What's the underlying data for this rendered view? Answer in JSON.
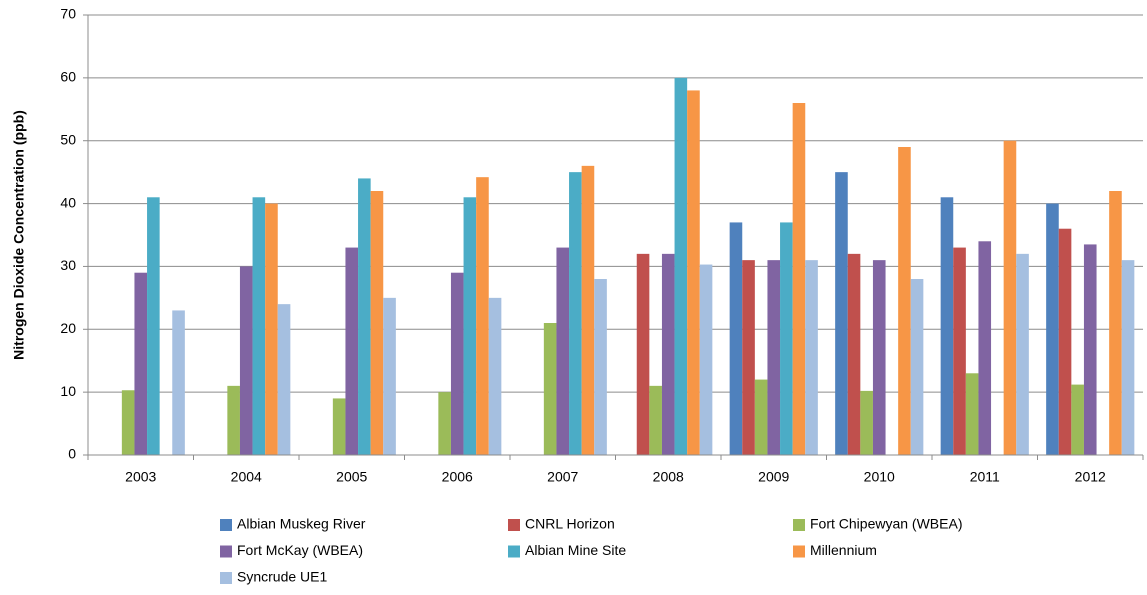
{
  "chart_data": {
    "type": "bar",
    "y_label": "Nitrogen Dioxide Concentration (ppb)",
    "categories": [
      "2003",
      "2004",
      "2005",
      "2006",
      "2007",
      "2008",
      "2009",
      "2010",
      "2011",
      "2012"
    ],
    "series": [
      {
        "name": "Albian Muskeg River",
        "color": "#4f81bd",
        "values": [
          null,
          null,
          null,
          null,
          null,
          null,
          37,
          45,
          41,
          40
        ]
      },
      {
        "name": "CNRL Horizon",
        "color": "#c0504d",
        "values": [
          null,
          null,
          null,
          null,
          null,
          32,
          31,
          32,
          33,
          36
        ]
      },
      {
        "name": "Fort Chipewyan (WBEA)",
        "color": "#9bbb59",
        "values": [
          10.3,
          11,
          9,
          10,
          21,
          11,
          12,
          10.2,
          13,
          11.2
        ]
      },
      {
        "name": "Fort McKay (WBEA)",
        "color": "#8064a2",
        "values": [
          29,
          30,
          33,
          29,
          33,
          32,
          31,
          31,
          34,
          33.5
        ]
      },
      {
        "name": "Albian Mine Site",
        "color": "#4bacc6",
        "values": [
          41,
          41,
          44,
          41,
          45,
          60,
          37,
          null,
          null,
          null
        ]
      },
      {
        "name": "Millennium",
        "color": "#f79646",
        "values": [
          null,
          40,
          42,
          44.2,
          46,
          58,
          56,
          49,
          50,
          42
        ]
      },
      {
        "name": "Syncrude UE1",
        "color": "#a5bfe0",
        "values": [
          23,
          24,
          25,
          25,
          28,
          30.3,
          31,
          28,
          32,
          31
        ]
      }
    ],
    "ylim": [
      0,
      70
    ],
    "yticks": [
      0,
      10,
      20,
      30,
      40,
      50,
      60,
      70
    ],
    "grid": true
  }
}
